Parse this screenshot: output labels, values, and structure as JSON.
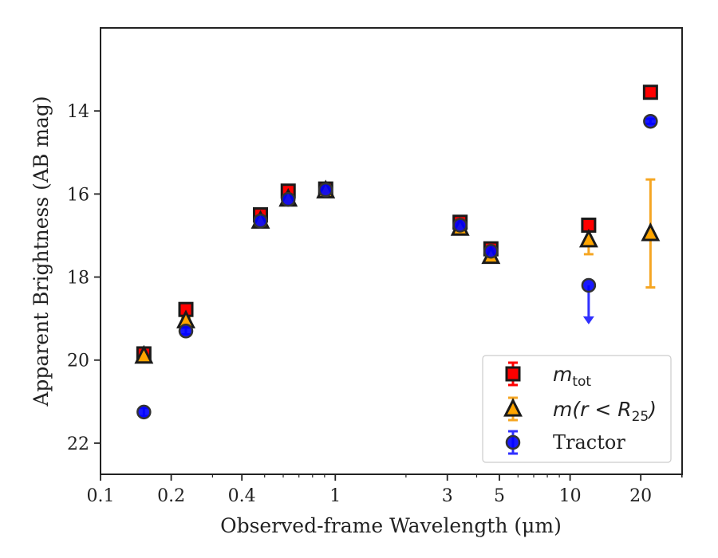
{
  "chart_data": {
    "type": "scatter",
    "xlabel": "Observed-frame Wavelength (μm)",
    "ylabel": "Apparent Brightness (AB mag)",
    "xscale": "log",
    "xlim": [
      0.1,
      30
    ],
    "ylim": [
      22.75,
      12.0
    ],
    "y_inverted": true,
    "x_ticks": [
      {
        "value": 0.1,
        "label": "0.1"
      },
      {
        "value": 0.2,
        "label": "0.2"
      },
      {
        "value": 0.4,
        "label": "0.4"
      },
      {
        "value": 1,
        "label": "1"
      },
      {
        "value": 3,
        "label": "3"
      },
      {
        "value": 5,
        "label": "5"
      },
      {
        "value": 10,
        "label": "10"
      },
      {
        "value": 20,
        "label": "20"
      }
    ],
    "y_ticks": [
      {
        "value": 14,
        "label": "14"
      },
      {
        "value": 16,
        "label": "16"
      },
      {
        "value": 18,
        "label": "18"
      },
      {
        "value": 20,
        "label": "20"
      },
      {
        "value": 22,
        "label": "22"
      }
    ],
    "grid": false,
    "legend_position": "lower-right",
    "series": [
      {
        "name": "m_tot",
        "marker": "square",
        "color": "#ff0000",
        "errcolor": "#ff0000",
        "points": [
          {
            "x": 0.153,
            "y": 19.85,
            "yerr": 0.12
          },
          {
            "x": 0.231,
            "y": 18.78,
            "yerr": 0.08
          },
          {
            "x": 0.48,
            "y": 16.5,
            "yerr": 0.06
          },
          {
            "x": 0.63,
            "y": 15.93,
            "yerr": 0.06
          },
          {
            "x": 0.91,
            "y": 15.88,
            "yerr": 0.06
          },
          {
            "x": 3.4,
            "y": 16.68,
            "yerr": 0.06
          },
          {
            "x": 4.6,
            "y": 17.32,
            "yerr": 0.06
          },
          {
            "x": 12.0,
            "y": 16.75,
            "yerr": 0.06
          },
          {
            "x": 22.0,
            "y": 13.55,
            "yerr": 0.06
          }
        ]
      },
      {
        "name": "m(r < R25)",
        "marker": "triangle",
        "color": "#ffa500",
        "errcolor": "#f5a623",
        "points": [
          {
            "x": 0.153,
            "y": 19.9,
            "yerr": 0.1
          },
          {
            "x": 0.231,
            "y": 19.05,
            "yerr": 0.08
          },
          {
            "x": 0.48,
            "y": 16.65,
            "yerr": 0.06
          },
          {
            "x": 0.63,
            "y": 16.12,
            "yerr": 0.06
          },
          {
            "x": 0.91,
            "y": 15.92,
            "yerr": 0.06
          },
          {
            "x": 3.4,
            "y": 16.82,
            "yerr": 0.06
          },
          {
            "x": 4.6,
            "y": 17.5,
            "yerr": 0.08
          },
          {
            "x": 12.0,
            "y": 17.1,
            "yerr": 0.35
          },
          {
            "x": 22.0,
            "y": 16.95,
            "yerr": 1.3
          }
        ]
      },
      {
        "name": "Tractor",
        "marker": "circle",
        "color": "#0000ff",
        "errcolor": "#3030ff",
        "points": [
          {
            "x": 0.153,
            "y": 21.25,
            "yerr": 0.1
          },
          {
            "x": 0.231,
            "y": 19.3,
            "yerr": 0.08
          },
          {
            "x": 0.48,
            "y": 16.65,
            "yerr": 0.06
          },
          {
            "x": 0.63,
            "y": 16.13,
            "yerr": 0.06
          },
          {
            "x": 0.91,
            "y": 15.9,
            "yerr": 0.06
          },
          {
            "x": 3.4,
            "y": 16.75,
            "yerr": 0.06
          },
          {
            "x": 4.6,
            "y": 17.38,
            "yerr": 0.06
          },
          {
            "x": 12.0,
            "y": 18.2,
            "yerr": 0,
            "upper_limit": true,
            "arrow_to": 19.1
          },
          {
            "x": 22.0,
            "y": 14.25,
            "yerr": 0.06
          }
        ]
      }
    ],
    "legend": [
      {
        "label": "m",
        "sub": "tot",
        "marker": "square"
      },
      {
        "label": "m(r < R",
        "sub": "25",
        "suffix": ")",
        "marker": "triangle"
      },
      {
        "label": "Tractor",
        "marker": "circle"
      }
    ]
  }
}
